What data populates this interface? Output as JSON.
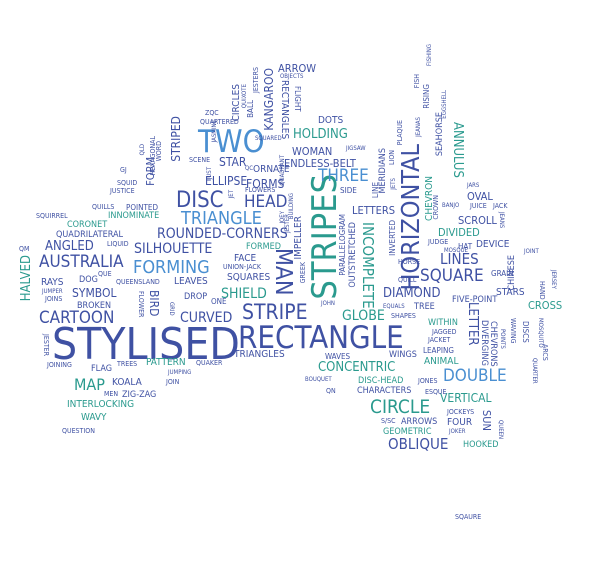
{
  "colors": {
    "navy": "#3f51a3",
    "blue": "#4a8fd1",
    "teal": "#2a9a8e",
    "mid": "#3b6fb5"
  },
  "words": {
    "stylised": "STYLISED",
    "rectangle": "RECTANGLE",
    "stripes": "STRIPES",
    "horizontal": "HORIZONTAL",
    "two": "TWO",
    "disc": "DISC",
    "man": "MAN",
    "stripe": "STRIPE",
    "triangle": "TRIANGLE",
    "forming": "FORMING",
    "australia": "AUSTRALIA",
    "cartoon": "CARTOON",
    "circle": "CIRCLE",
    "three": "THREE",
    "double": "DOUBLE",
    "head": "HEAD",
    "square": "SQUARE",
    "lines": "LINES",
    "incomplete": "INCOMPLETE",
    "oblique": "OBLIQUE",
    "rounded_corners": "ROUNDED-CORNERS",
    "silhouette": "SILHOUETTE",
    "curved": "CURVED",
    "shield": "SHIELD",
    "map": "MAP",
    "globe": "GLOBE",
    "diamond": "DIAMOND",
    "letter": "LETTER",
    "annulus": "ANNULUS",
    "concentric": "CONCENTRIC",
    "holding": "HOLDING",
    "woman": "WOMAN",
    "endless_belt": "ENDLESS-BELT",
    "arrow": "ARROW",
    "ellipse": "ELLIPSE",
    "forms": "FORMS",
    "star": "STAR",
    "striped": "STRIPED",
    "kangaroo": "KANGAROO",
    "rectangles": "RECTANGLES",
    "dots": "DOTS",
    "vertical": "VERTICAL",
    "halved": "HALVED",
    "angled": "ANGLED",
    "symbol": "SYMBOL",
    "bird": "BIRD",
    "pattern": "PATTERN",
    "triangles": "TRIANGLES",
    "koala": "KOALA",
    "interlocking": "INTERLOCKING",
    "wavy": "WAVY",
    "question": "QUESTION",
    "zig_zag": "ZIG-ZAG",
    "flag": "FLAG",
    "trees": "TREES",
    "men": "MEN",
    "join": "JOIN",
    "jumping": "JUMPING",
    "joining": "JOINING",
    "jester_left": "JESTER",
    "rays": "RAYS",
    "dog": "DOG",
    "broken": "BROKEN",
    "joins": "JOINS",
    "jumper": "JUMPER",
    "quadrilateral": "QUADRILATERAL",
    "coronet": "CORONET",
    "squirrel": "SQUIRREL",
    "quills": "QUILLS",
    "justice": "JUSTICE",
    "squid": "SQUID",
    "gj": "GJ",
    "innominate": "INNOMINATE",
    "pointed": "POINTED",
    "liquid": "LIQUID",
    "qm": "QM",
    "que": "QUE",
    "queensland": "QUEENSLAND",
    "leaves": "LEAVES",
    "drop": "DROP",
    "one": "ONE",
    "squares": "SQUARES",
    "face": "FACE",
    "union_jack": "UNION-JACK",
    "formed": "FORMED",
    "flower": "FLOWER",
    "grid": "GRID",
    "quaker": "QUAKER",
    "waves": "WAVES",
    "bouquet": "BOUQUET",
    "qn": "QN",
    "disc_head": "DISC-HEAD",
    "characters": "CHARACTERS",
    "esque": "ESQUE",
    "arrows": "ARROWS",
    "sc": "S/SC",
    "geometric": "GEOMETRIC",
    "joker": "JOKER",
    "jockeys": "JOCKEYS",
    "sun": "SUN",
    "queen": "QUEEN",
    "hooked": "HOOKED",
    "four": "FOUR",
    "animal": "ANIMAL",
    "leaping": "LEAPING",
    "jones": "JONES",
    "wings": "WINGS",
    "jacket": "JACKET",
    "within": "WITHIN",
    "jagged": "JAGGED",
    "shapes": "SHAPES",
    "equals": "EQUALS",
    "tree": "TREE",
    "quill": "QUILL",
    "five_point": "FIVE-POINT",
    "stars": "STARS",
    "cross": "CROSS",
    "grain": "GRAIN",
    "chinese": "CHINESE",
    "device": "DEVICE",
    "joint": "JOINT",
    "jersey": "JERSEY",
    "hand": "HAND",
    "divided": "DIVIDED",
    "judge": "JUDGE",
    "hat": "HAT",
    "mosque": "MOSQUE",
    "horse": "HORSE",
    "scroll": "SCROLL",
    "oval": "OVAL",
    "juice": "JUICE",
    "jack": "JACK",
    "jars": "JARS",
    "banjo": "BANJO",
    "jeans": "JEANS",
    "crown": "CROWN",
    "chevron": "CHEVRON",
    "chevrons": "CHEVRONS",
    "diverging": "DIVERGING",
    "points": "POINTS",
    "waving": "WAVING",
    "discs": "DISCS",
    "quarter": "QUARTER",
    "arcs": "ARCS",
    "mosquito": "MOSQUITO",
    "inverted": "INVERTED",
    "jets": "JETS",
    "lion": "LION",
    "meridians": "MERIDIANS",
    "line": "LINE",
    "plaque": "PLAQUE",
    "jeanas": "JEANAS",
    "rising": "RISING",
    "fish": "FISH",
    "fishing": "FISHING",
    "seahorse": "SEAHORSE",
    "eggshell": "EGGSHELL",
    "letters": "LETTERS",
    "side": "SIDE",
    "jigsaw": "JIGSAW",
    "impeller": "IMPELLER",
    "outstretched": "OUTSTRETCHED",
    "parallelogram": "PARALLELOGRAM",
    "jester_mid": "JESTER",
    "greek": "GREEK",
    "john": "JOHN",
    "building": "BUILDING",
    "joey": "JOEY",
    "ornate": "ORNATE",
    "flowers": "FLOWERS",
    "quadrant": "QUADRANT",
    "quartered": "QUARTERED",
    "zqc": "ZQC",
    "circles": "CIRCLES",
    "quixote": "QUIXOTE",
    "jesters": "JESTERS",
    "ball": "BALL",
    "objects": "OBJECTS",
    "flight": "FLIGHT",
    "squared": "SQUARED",
    "just": "JUST",
    "jasmine": "JASMINE",
    "hexagonal": "HEXAGONAL",
    "word": "WORD",
    "qld": "QLD",
    "form": "FORM",
    "scene": "SCENE",
    "qc": "QC",
    "jet": "JET",
    "sqaure": "SQAURE"
  }
}
